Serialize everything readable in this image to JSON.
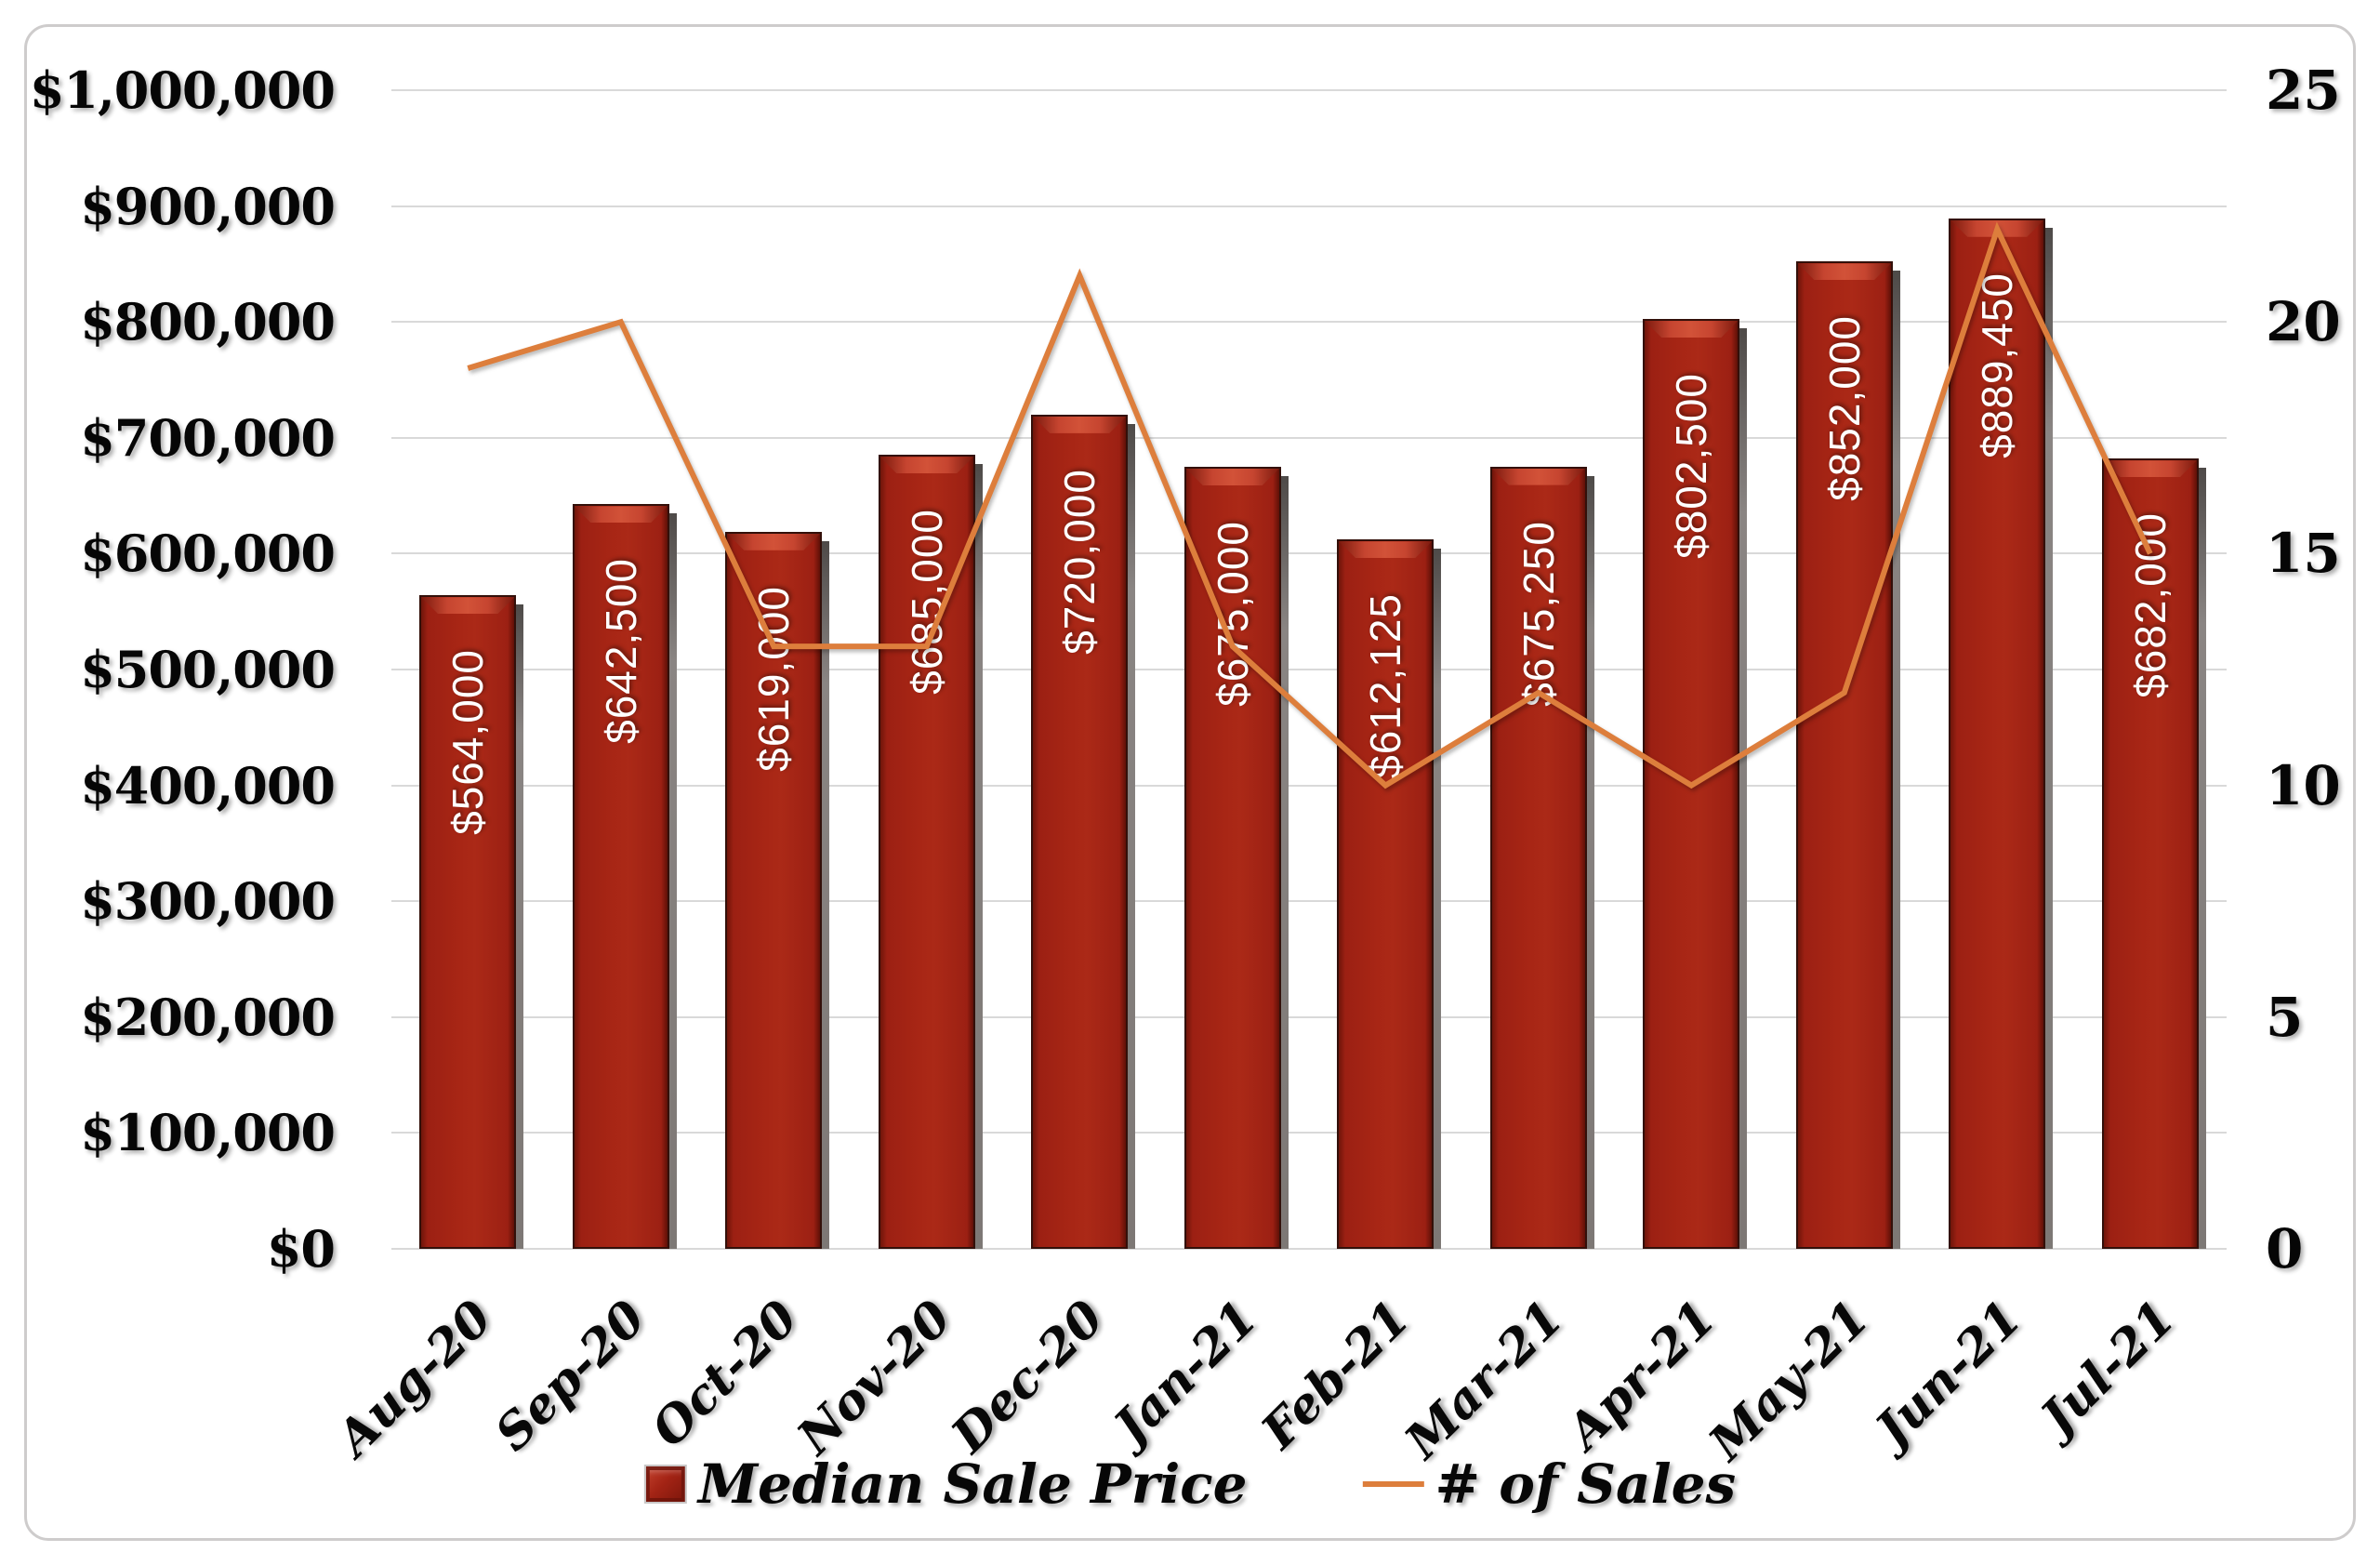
{
  "chart_data": {
    "type": "combo-bar-line",
    "categories": [
      "Aug-20",
      "Sep-20",
      "Oct-20",
      "Nov-20",
      "Dec-20",
      "Jan-21",
      "Feb-21",
      "Mar-21",
      "Apr-21",
      "May-21",
      "Jun-21",
      "Jul-21"
    ],
    "series": [
      {
        "name": "Median Sale Price",
        "type": "bar",
        "axis": "left",
        "values": [
          564000,
          642500,
          619000,
          685000,
          720000,
          675000,
          612125,
          675250,
          802500,
          852000,
          889450,
          682000
        ],
        "data_labels": [
          "$564,000",
          "$642,500",
          "$619,000",
          "$685,000",
          "$720,000",
          "$675,000",
          "$612,125",
          "$675,250",
          "$802,500",
          "$852,000",
          "$889,450",
          "$682,000"
        ],
        "color": "#A22315"
      },
      {
        "name": "# of Sales",
        "type": "line",
        "axis": "right",
        "values": [
          19,
          20,
          13,
          13,
          21,
          13,
          10,
          12,
          10,
          12,
          22,
          15
        ],
        "color": "#DD7E3C"
      }
    ],
    "left_axis": {
      "min": 0,
      "max": 1000000,
      "tick_step": 100000,
      "ticks": [
        "$1,000,000",
        "$900,000",
        "$800,000",
        "$700,000",
        "$600,000",
        "$500,000",
        "$400,000",
        "$300,000",
        "$200,000",
        "$100,000",
        "$0"
      ]
    },
    "right_axis": {
      "min": 0,
      "max": 25,
      "tick_step": 5,
      "ticks": [
        "25",
        "20",
        "15",
        "10",
        "5",
        "0"
      ]
    },
    "grid": true,
    "title": "",
    "legend_position": "bottom"
  },
  "legend": {
    "bar_label": "Median Sale Price",
    "line_label": "# of Sales"
  },
  "colors": {
    "bar_fill": "#A22315",
    "bar_bevel_highlight": "#CC4A31",
    "bar_side_shadow": "#7D7875",
    "line": "#DD7E3C",
    "gridline": "#D9D9D9",
    "axis_text": "#060606",
    "data_label_text": "#FFFFFF",
    "chart_border": "#CECCCC"
  }
}
